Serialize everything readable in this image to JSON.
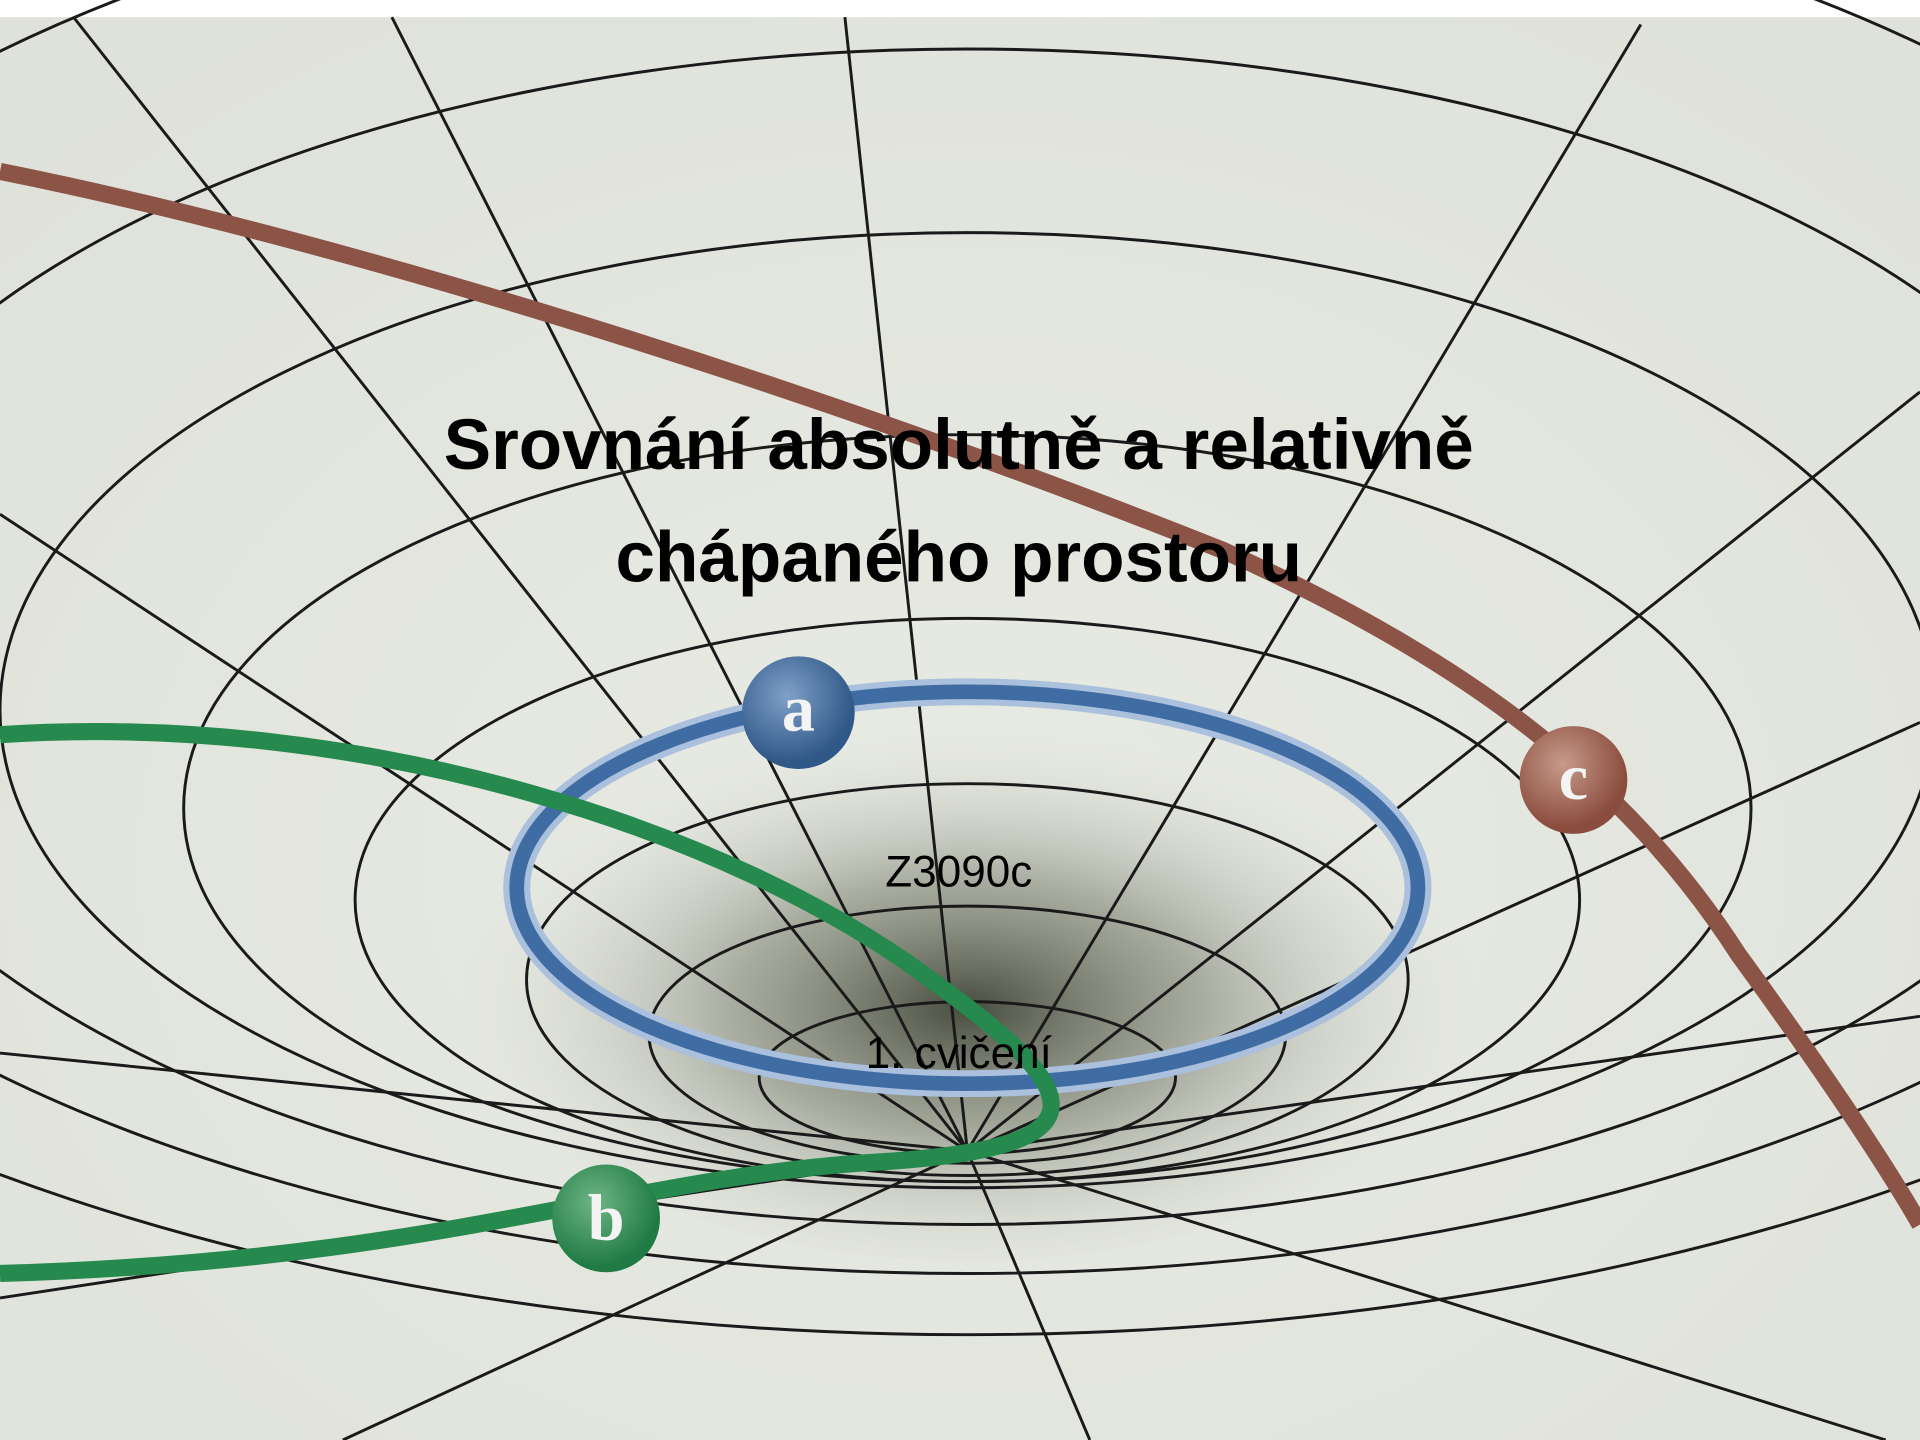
{
  "slide": {
    "title_lines": [
      "Srovnání absolutně a relativně",
      "chápaného prostoru"
    ],
    "subtitle_lines": [
      "Z3090c",
      "1. cvičení"
    ],
    "diagram_labels": [
      "a",
      "b",
      "c"
    ]
  }
}
